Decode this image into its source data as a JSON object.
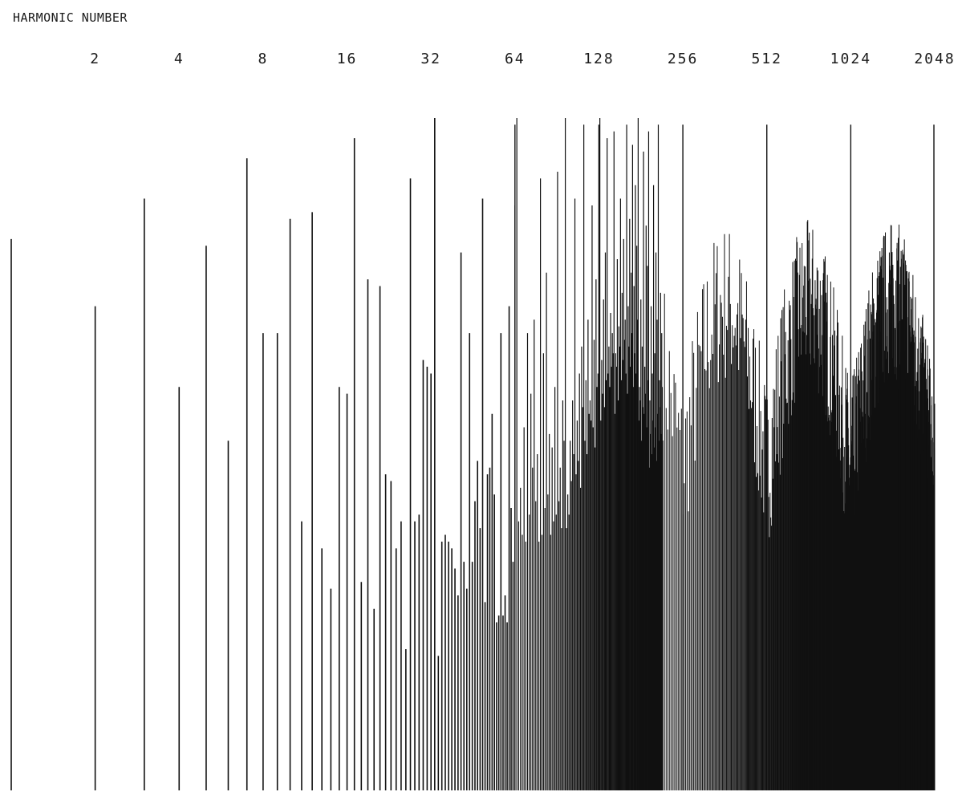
{
  "chart_data": {
    "type": "bar",
    "title": "",
    "xlabel": "HARMONIC NUMBER",
    "ylabel": "",
    "x_scale": "log2",
    "x_ticks": [
      "2",
      "4",
      "8",
      "16",
      "32",
      "64",
      "128",
      "256",
      "512",
      "1024",
      "2048"
    ],
    "x_range": [
      1,
      2048
    ],
    "y_range": [
      0,
      1
    ],
    "y_axis_shown": false,
    "grid": false,
    "legend": "none",
    "bar_color": "#111111",
    "series": [
      {
        "values": [
          0.82,
          0.72,
          0.88,
          0.6,
          0.81,
          0.52,
          0.94,
          0.68,
          0.68,
          0.85,
          0.4,
          0.86,
          0.36,
          0.3,
          0.6,
          0.59,
          0.97,
          0.31,
          0.76,
          0.27,
          0.75,
          0.47,
          0.46,
          0.36,
          0.4,
          0.21,
          0.91,
          0.4,
          0.41,
          0.64,
          0.63,
          0.62,
          1.0,
          0.2,
          0.37,
          0.38,
          0.37,
          0.36,
          0.33,
          0.29,
          0.8,
          0.34,
          0.3,
          0.68,
          0.34,
          0.43,
          0.49,
          0.39,
          0.88,
          0.28,
          0.47,
          0.48,
          0.56,
          0.44,
          0.25,
          0.26,
          0.68,
          0.26,
          0.29,
          0.25,
          0.72,
          0.42,
          0.34,
          0.87,
          1.0,
          0.4,
          0.45,
          0.38,
          0.54,
          0.37,
          0.68,
          0.41,
          0.59,
          0.48,
          0.7,
          0.43,
          0.5,
          0.37,
          0.91,
          0.38,
          0.65,
          0.42,
          0.77,
          0.44,
          0.53,
          0.38,
          0.51,
          0.4,
          0.6,
          0.41,
          0.92,
          0.43,
          0.48,
          0.39,
          0.58,
          0.52,
          1.0,
          0.39,
          0.44,
          0.41,
          0.52,
          0.46,
          0.58,
          0.5,
          0.88,
          0.47,
          0.55,
          0.49,
          0.62,
          0.45,
          0.66,
          0.57,
          0.99,
          0.52,
          0.61,
          0.5,
          0.7,
          0.56,
          0.58,
          0.55,
          0.87,
          0.54,
          0.67,
          0.51,
          0.76,
          0.6,
          0.62,
          0.58,
          1.0,
          0.55,
          0.64,
          0.59,
          0.73,
          0.57,
          0.8,
          0.61,
          0.97,
          0.62,
          0.66,
          0.6,
          0.71,
          0.63,
          0.68,
          0.65,
          0.98,
          0.56,
          0.65,
          0.63,
          0.79,
          0.58,
          0.69,
          0.66,
          0.88,
          0.61,
          0.74,
          0.64,
          0.82,
          0.67,
          0.7,
          0.62,
          0.99,
          0.59,
          0.72,
          0.66,
          0.85,
          0.63,
          0.77,
          0.68,
          0.96,
          0.6,
          0.75,
          0.65,
          0.9,
          0.62,
          0.81,
          0.7,
          1.0,
          0.55,
          0.6,
          0.58,
          0.73,
          0.52,
          0.66,
          0.57,
          0.95,
          0.56,
          0.63,
          0.59,
          0.84,
          0.54,
          0.78,
          0.61,
          0.98,
          0.48,
          0.58,
          0.53,
          0.72,
          0.5,
          0.62,
          0.55,
          0.9,
          0.51,
          0.65,
          0.54,
          0.8,
          0.49,
          0.7,
          0.56,
          0.99,
          0.52,
          0.61,
          0.57,
          0.74,
          0.53,
          0.68,
          0.6
        ]
      }
    ]
  }
}
